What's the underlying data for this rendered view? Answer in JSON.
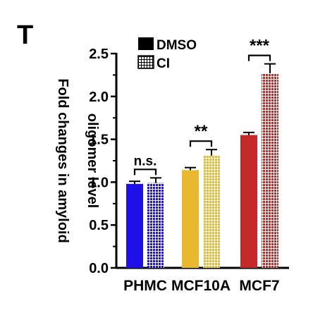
{
  "panel_label": "T",
  "chart_data": {
    "type": "bar",
    "title": "",
    "xlabel": "",
    "ylabel": "Fold changes in amyloid oligomer level",
    "ylim": [
      0,
      2.5
    ],
    "yticks": [
      "0.0",
      "0.5",
      "1.0",
      "1.5",
      "2.0",
      "2.5"
    ],
    "categories": [
      "PHMC",
      "MCF10A",
      "MCF7"
    ],
    "category_colors": [
      "#2010e8",
      "#e8b830",
      "#c42a2a"
    ],
    "series": [
      {
        "name": "DMSO",
        "pattern": "solid",
        "values": [
          0.98,
          1.14,
          1.55
        ],
        "errors": [
          0.03,
          0.03,
          0.03
        ]
      },
      {
        "name": "CI",
        "pattern": "grid",
        "values": [
          0.99,
          1.31,
          2.27
        ],
        "errors": [
          0.06,
          0.07,
          0.11
        ]
      }
    ],
    "significance": [
      "n.s.",
      "**",
      "***"
    ],
    "legend": {
      "placement": "top-left",
      "entries": [
        "DMSO",
        "CI"
      ]
    },
    "grid": false
  }
}
